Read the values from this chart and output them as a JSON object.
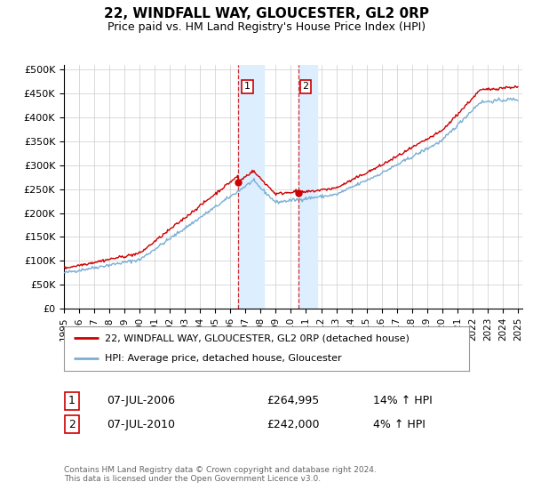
{
  "title": "22, WINDFALL WAY, GLOUCESTER, GL2 0RP",
  "subtitle": "Price paid vs. HM Land Registry's House Price Index (HPI)",
  "yticks": [
    0,
    50000,
    100000,
    150000,
    200000,
    250000,
    300000,
    350000,
    400000,
    450000,
    500000
  ],
  "ytick_labels": [
    "£0",
    "£50K",
    "£100K",
    "£150K",
    "£200K",
    "£250K",
    "£300K",
    "£350K",
    "£400K",
    "£450K",
    "£500K"
  ],
  "xlim_start": 1995.0,
  "xlim_end": 2025.3,
  "ylim_min": 0,
  "ylim_max": 510000,
  "sale1_date": 2006.52,
  "sale1_price": 264995,
  "sale1_label": "1",
  "sale2_date": 2010.52,
  "sale2_price": 242000,
  "sale2_label": "2",
  "line_red_color": "#cc0000",
  "line_blue_color": "#7aafd4",
  "shade_color": "#ddeeff",
  "grid_color": "#cccccc",
  "legend_entries": [
    "22, WINDFALL WAY, GLOUCESTER, GL2 0RP (detached house)",
    "HPI: Average price, detached house, Gloucester"
  ],
  "annotation1": [
    "1",
    "07-JUL-2006",
    "£264,995",
    "14% ↑ HPI"
  ],
  "annotation2": [
    "2",
    "07-JUL-2010",
    "£242,000",
    "4% ↑ HPI"
  ],
  "footer": "Contains HM Land Registry data © Crown copyright and database right 2024.\nThis data is licensed under the Open Government Licence v3.0."
}
